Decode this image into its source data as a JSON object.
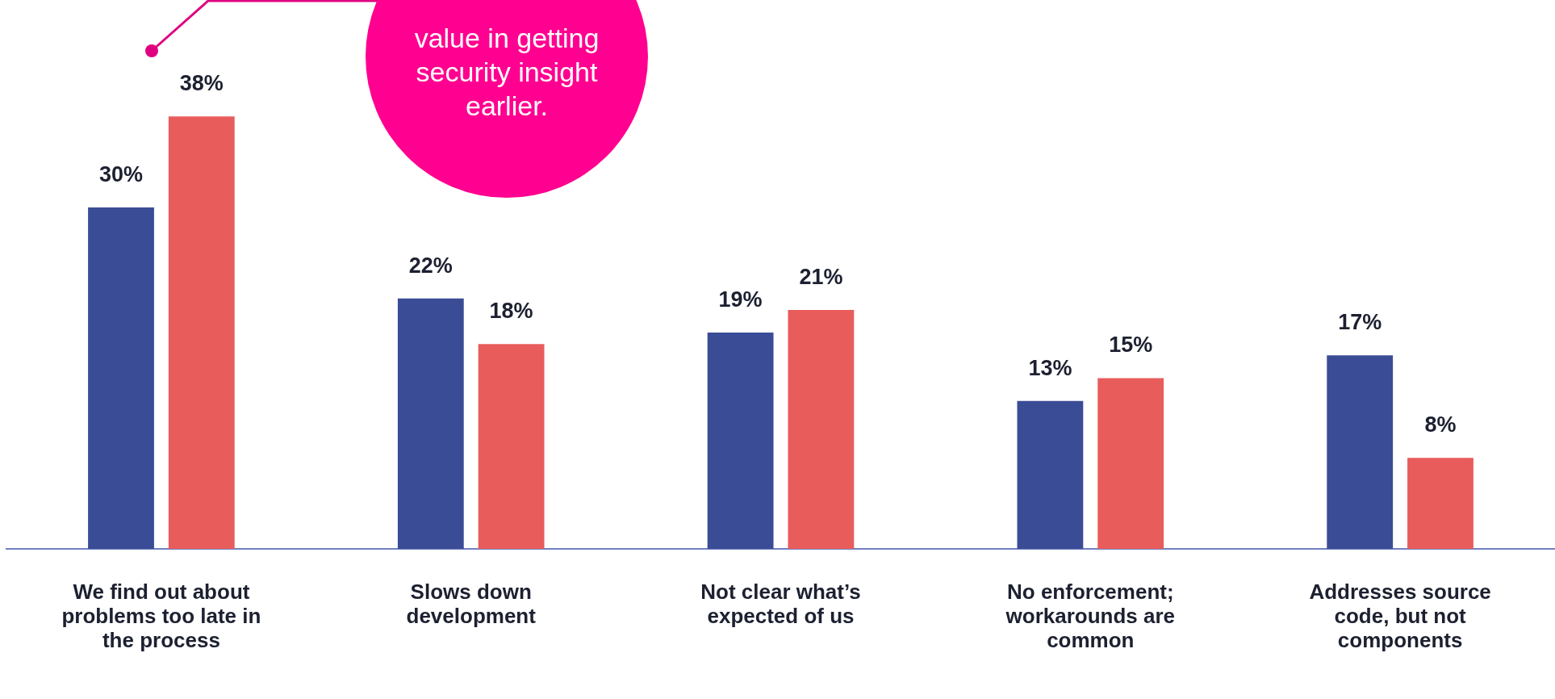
{
  "chart_data": {
    "type": "bar",
    "categories": [
      "We find out about problems too late in the process",
      "Slows down development",
      "Not clear what’s expected of us",
      "No enforcement; workarounds are common",
      "Addresses source code, but not components"
    ],
    "series": [
      {
        "color": "#3b4c96",
        "values": [
          30,
          22,
          19,
          13,
          17
        ],
        "value_labels": [
          "30%",
          "22%",
          "19%",
          "13%",
          "17%"
        ]
      },
      {
        "color": "#e85c5c",
        "values": [
          38,
          18,
          21,
          15,
          8
        ],
        "value_labels": [
          "38%",
          "18%",
          "21%",
          "15%",
          "8%"
        ]
      }
    ],
    "grid": false,
    "legend": false,
    "annotations": [
      "value in getting security insight earlier."
    ]
  }
}
